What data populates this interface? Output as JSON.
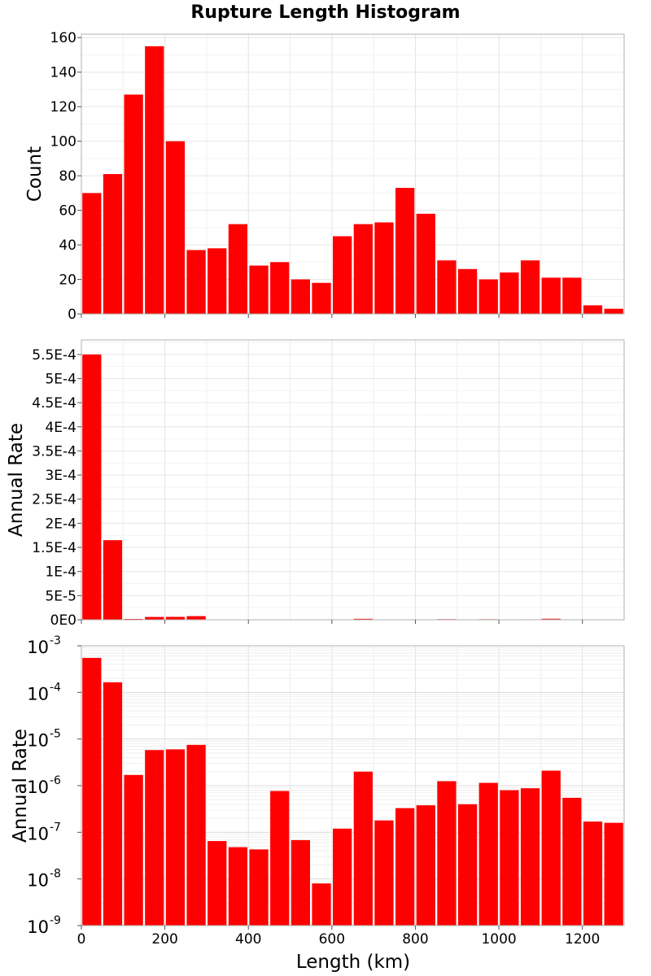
{
  "chart_data": {
    "title": "Rupture Length Histogram",
    "type": "bar",
    "xlabel": "Length (km)",
    "xlim": [
      0,
      1300
    ],
    "xticks": [
      "0",
      "200",
      "400",
      "600",
      "800",
      "1000",
      "1200"
    ],
    "bin_width": 50,
    "bin_centers": [
      25,
      75,
      125,
      175,
      225,
      275,
      325,
      375,
      425,
      475,
      525,
      575,
      625,
      675,
      725,
      775,
      825,
      875,
      925,
      975,
      1025,
      1075,
      1125,
      1175,
      1225,
      1275
    ],
    "bar_color": "#ff0000",
    "grid": true,
    "panels": [
      {
        "ylabel": "Count",
        "scale": "linear",
        "ylim": [
          0,
          162
        ],
        "yticks": [
          "0",
          "20",
          "40",
          "60",
          "80",
          "100",
          "120",
          "140",
          "160"
        ],
        "values": [
          70,
          81,
          127,
          155,
          100,
          37,
          38,
          52,
          28,
          30,
          20,
          18,
          45,
          52,
          53,
          73,
          58,
          31,
          26,
          20,
          24,
          31,
          21,
          21,
          5,
          3
        ]
      },
      {
        "ylabel": "Annual Rate",
        "scale": "linear",
        "ylim": [
          0,
          0.00058
        ],
        "yticks": [
          "0E0",
          "5E-5",
          "1E-4",
          "1.5E-4",
          "2E-4",
          "2.5E-4",
          "3E-4",
          "3.5E-4",
          "4E-4",
          "4.5E-4",
          "5E-4",
          "5.5E-4"
        ],
        "values": [
          0.00055,
          0.000165,
          1.7e-06,
          5.8e-06,
          6e-06,
          7.5e-06,
          6.5e-08,
          4.8e-08,
          4.3e-08,
          7.7e-07,
          6.8e-08,
          8e-09,
          1.2e-07,
          2e-06,
          1.8e-07,
          3.3e-07,
          3.8e-07,
          1.25e-06,
          4e-07,
          1.15e-06,
          8e-07,
          8.8e-07,
          2.1e-06,
          5.5e-07,
          1.7e-07,
          1.6e-07
        ]
      },
      {
        "ylabel": "Annual Rate",
        "scale": "log",
        "ylim": [
          1e-09,
          0.001
        ],
        "yticks_base": "10",
        "yticks_exp": [
          "-9",
          "-8",
          "-7",
          "-6",
          "-5",
          "-4",
          "-3"
        ],
        "values": [
          0.00055,
          0.000165,
          1.7e-06,
          5.8e-06,
          6e-06,
          7.5e-06,
          6.5e-08,
          4.8e-08,
          4.3e-08,
          7.7e-07,
          6.8e-08,
          8e-09,
          1.2e-07,
          2e-06,
          1.8e-07,
          3.3e-07,
          3.8e-07,
          1.25e-06,
          4e-07,
          1.15e-06,
          8e-07,
          8.8e-07,
          2.1e-06,
          5.5e-07,
          1.7e-07,
          1.6e-07
        ]
      }
    ]
  }
}
